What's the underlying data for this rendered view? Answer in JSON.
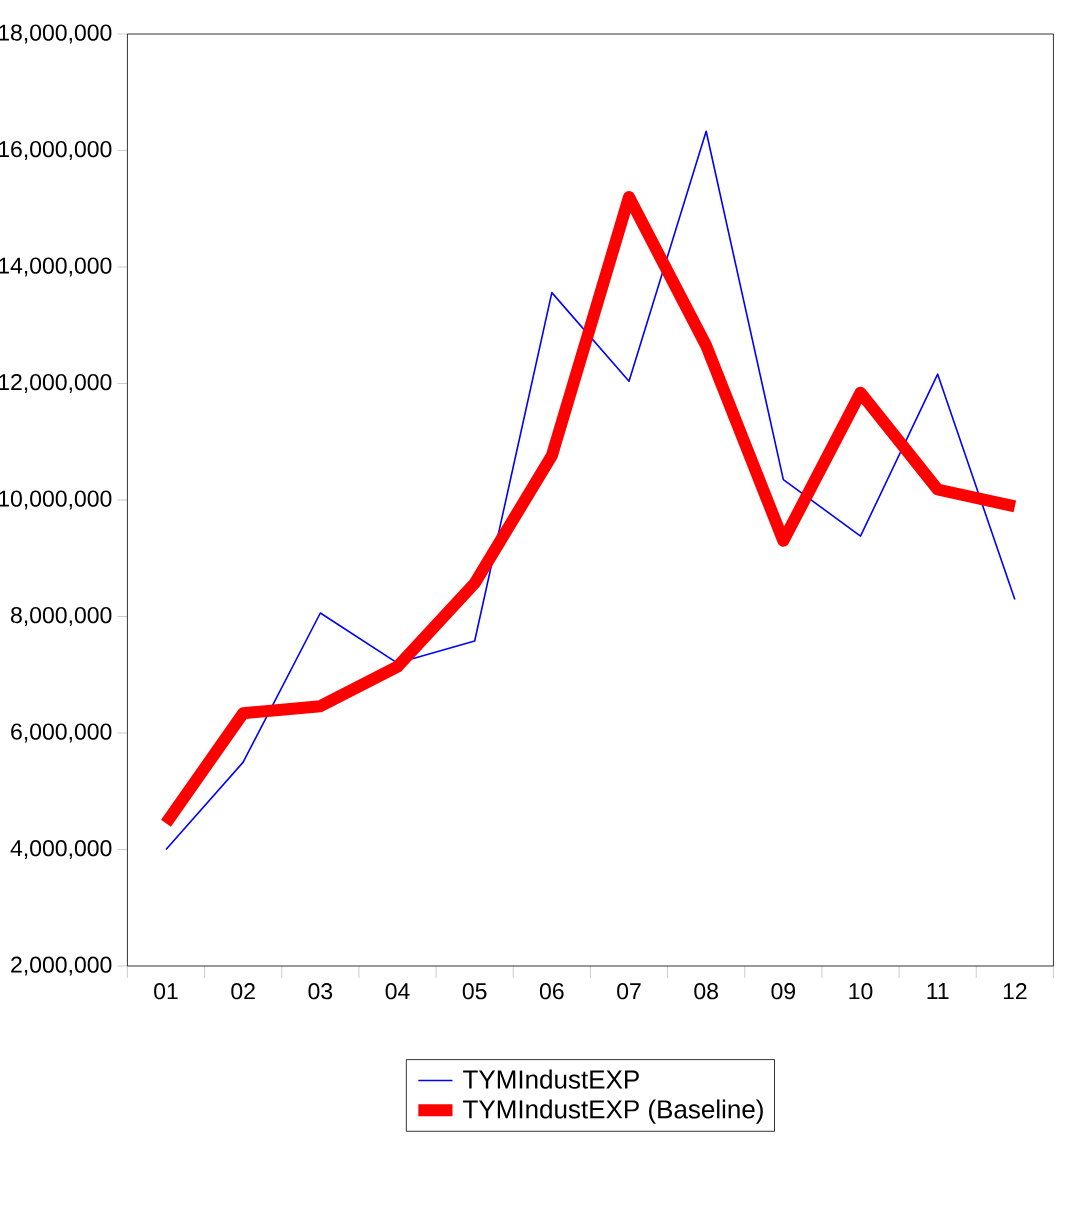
{
  "chart_data": {
    "type": "line",
    "categories": [
      "01",
      "02",
      "03",
      "04",
      "05",
      "06",
      "07",
      "08",
      "09",
      "10",
      "11",
      "12"
    ],
    "series": [
      {
        "name": "TYMIndustEXP",
        "color": "#0000ff",
        "values": [
          4000000,
          5500000,
          8060000,
          7200000,
          7580000,
          13560000,
          12040000,
          16330000,
          10350000,
          9380000,
          12160000,
          8290000
        ]
      },
      {
        "name": "TYMIndustEXP (Baseline)",
        "color": "#ff0000",
        "values": [
          4450000,
          6340000,
          6460000,
          7140000,
          8570000,
          10760000,
          15200000,
          12650000,
          9300000,
          11840000,
          10180000,
          9890000
        ]
      }
    ],
    "ylim": [
      2000000,
      18000000
    ],
    "yticks": [
      {
        "value": 2000000,
        "label": "2,000,000"
      },
      {
        "value": 4000000,
        "label": "4,000,000"
      },
      {
        "value": 6000000,
        "label": "6,000,000"
      },
      {
        "value": 8000000,
        "label": "8,000,000"
      },
      {
        "value": 10000000,
        "label": "10,000,000"
      },
      {
        "value": 12000000,
        "label": "12,000,000"
      },
      {
        "value": 14000000,
        "label": "14,000,000"
      },
      {
        "value": 16000000,
        "label": "16,000,000"
      },
      {
        "value": 18000000,
        "label": "18,000,000"
      }
    ],
    "grid": false,
    "legend": "bottom",
    "marker": "none",
    "line_style": "solid"
  }
}
